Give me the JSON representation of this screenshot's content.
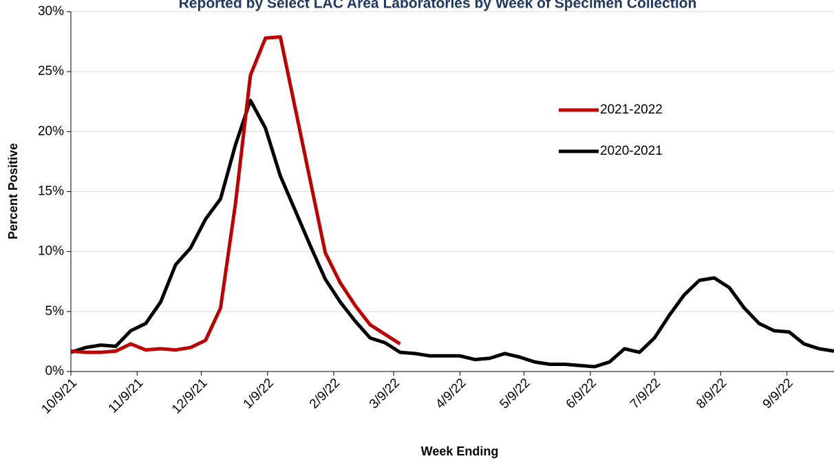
{
  "chart_data": {
    "type": "line",
    "title": "Reported by Select LAC Area Laboratories by Week of Specimen Collection",
    "x_label": "Week Ending",
    "y_label": "Percent Positive",
    "x": [
      "10/9/21",
      "10/16/21",
      "10/23/21",
      "10/30/21",
      "11/6/21",
      "11/13/21",
      "11/20/21",
      "11/27/21",
      "12/4/21",
      "12/11/21",
      "12/18/21",
      "12/25/21",
      "1/1/22",
      "1/8/22",
      "1/15/22",
      "1/22/22",
      "1/29/22",
      "2/5/22",
      "2/12/22",
      "2/19/22",
      "2/26/22",
      "3/5/22",
      "3/12/22",
      "3/19/22",
      "3/26/22",
      "4/2/22",
      "4/9/22",
      "4/16/22",
      "4/23/22",
      "4/30/22",
      "5/7/22",
      "5/14/22",
      "5/21/22",
      "5/28/22",
      "6/4/22",
      "6/11/22",
      "6/18/22",
      "6/25/22",
      "7/2/22",
      "7/9/22",
      "7/16/22",
      "7/23/22",
      "7/30/22",
      "8/6/22",
      "8/13/22",
      "8/20/22",
      "8/27/22",
      "9/3/22",
      "9/10/22",
      "9/17/22",
      "9/24/22",
      "10/1/22"
    ],
    "series": [
      {
        "name": "2021-2022",
        "color": "#c00000",
        "values": [
          1.7,
          1.6,
          1.6,
          1.7,
          2.3,
          1.8,
          1.9,
          1.8,
          2.0,
          2.6,
          5.3,
          14.0,
          24.7,
          27.8,
          27.9,
          21.9,
          15.9,
          9.9,
          7.4,
          5.5,
          3.9,
          3.1,
          2.3,
          null,
          null,
          null,
          null,
          null,
          null,
          null,
          null,
          null,
          null,
          null,
          null,
          null,
          null,
          null,
          null,
          null,
          null,
          null,
          null,
          null,
          null,
          null,
          null,
          null,
          null,
          null,
          null,
          null
        ]
      },
      {
        "name": "2020-2021",
        "color": "#000000",
        "values": [
          1.6,
          2.0,
          2.2,
          2.1,
          3.4,
          4.0,
          5.8,
          8.9,
          10.3,
          12.7,
          14.4,
          18.9,
          22.6,
          20.3,
          16.3,
          13.4,
          10.5,
          7.7,
          5.8,
          4.2,
          2.8,
          2.4,
          1.6,
          1.5,
          1.3,
          1.3,
          1.3,
          1.0,
          1.1,
          1.5,
          1.2,
          0.8,
          0.6,
          0.6,
          0.5,
          0.4,
          0.8,
          1.9,
          1.6,
          2.8,
          4.7,
          6.4,
          7.6,
          7.8,
          7.0,
          5.3,
          4.0,
          3.4,
          3.3,
          2.3,
          1.9,
          1.7
        ]
      }
    ],
    "xlim": [
      "10/9/21",
      "10/1/22"
    ],
    "xticks": [
      "10/9/21",
      "11/9/21",
      "12/9/21",
      "1/9/22",
      "2/9/22",
      "3/9/22",
      "4/9/22",
      "5/9/22",
      "6/9/22",
      "7/9/22",
      "8/9/22",
      "9/9/22"
    ],
    "ylim": [
      0,
      30
    ],
    "yticks": [
      {
        "value": 0,
        "label": "0%"
      },
      {
        "value": 5,
        "label": "5%"
      },
      {
        "value": 10,
        "label": "10%"
      },
      {
        "value": 15,
        "label": "15%"
      },
      {
        "value": 20,
        "label": "20%"
      },
      {
        "value": 25,
        "label": "25%"
      },
      {
        "value": 30,
        "label": "30%"
      }
    ],
    "grid": true,
    "legend": "right"
  }
}
